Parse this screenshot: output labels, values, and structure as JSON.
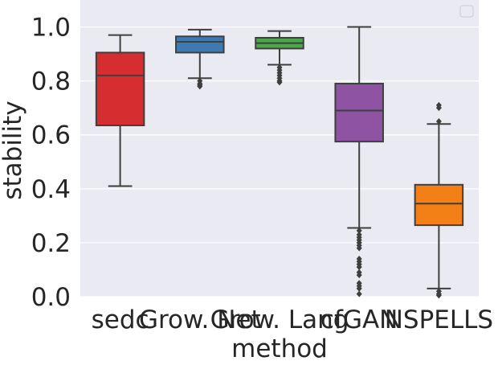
{
  "chart_data": {
    "type": "box",
    "title": "",
    "xlabel": "method",
    "ylabel": "stability",
    "ylim": [
      0.0,
      1.1
    ],
    "yticks": [
      "0.0",
      "0.2",
      "0.4",
      "0.6",
      "0.8",
      "1.0"
    ],
    "grid": true,
    "legend": "top-right (empty)",
    "categories": [
      "sedc",
      "Grow. Net",
      "Grow. Lang",
      "cfGAN",
      "NSPELLS"
    ],
    "boxes": [
      {
        "name": "sedc",
        "whisker_low": 0.41,
        "q1": 0.635,
        "median": 0.82,
        "q3": 0.905,
        "whisker_high": 0.97,
        "outliers": [],
        "color": "#d62d30"
      },
      {
        "name": "Grow. Net",
        "whisker_low": 0.81,
        "q1": 0.905,
        "median": 0.945,
        "q3": 0.965,
        "whisker_high": 0.99,
        "outliers": [
          0.8,
          0.79,
          0.785,
          0.78
        ],
        "color": "#3d7ab4"
      },
      {
        "name": "Grow. Lang",
        "whisker_low": 0.86,
        "q1": 0.92,
        "median": 0.94,
        "q3": 0.96,
        "whisker_high": 0.985,
        "outliers": [
          0.85,
          0.84,
          0.83,
          0.82,
          0.81,
          0.8,
          0.795
        ],
        "color": "#4ea64c"
      },
      {
        "name": "cfGAN",
        "whisker_low": 0.255,
        "q1": 0.575,
        "median": 0.69,
        "q3": 0.79,
        "whisker_high": 1.0,
        "outliers": [
          0.245,
          0.23,
          0.22,
          0.21,
          0.2,
          0.19,
          0.18,
          0.14,
          0.13,
          0.12,
          0.11,
          0.09,
          0.08,
          0.05,
          0.04,
          0.03,
          0.01
        ],
        "color": "#8e53a3"
      },
      {
        "name": "NSPELLS",
        "whisker_low": 0.03,
        "q1": 0.265,
        "median": 0.345,
        "q3": 0.415,
        "whisker_high": 0.64,
        "outliers": [
          0.65,
          0.7,
          0.71,
          0.02,
          0.01,
          0.005
        ],
        "color": "#f57f17"
      }
    ]
  }
}
